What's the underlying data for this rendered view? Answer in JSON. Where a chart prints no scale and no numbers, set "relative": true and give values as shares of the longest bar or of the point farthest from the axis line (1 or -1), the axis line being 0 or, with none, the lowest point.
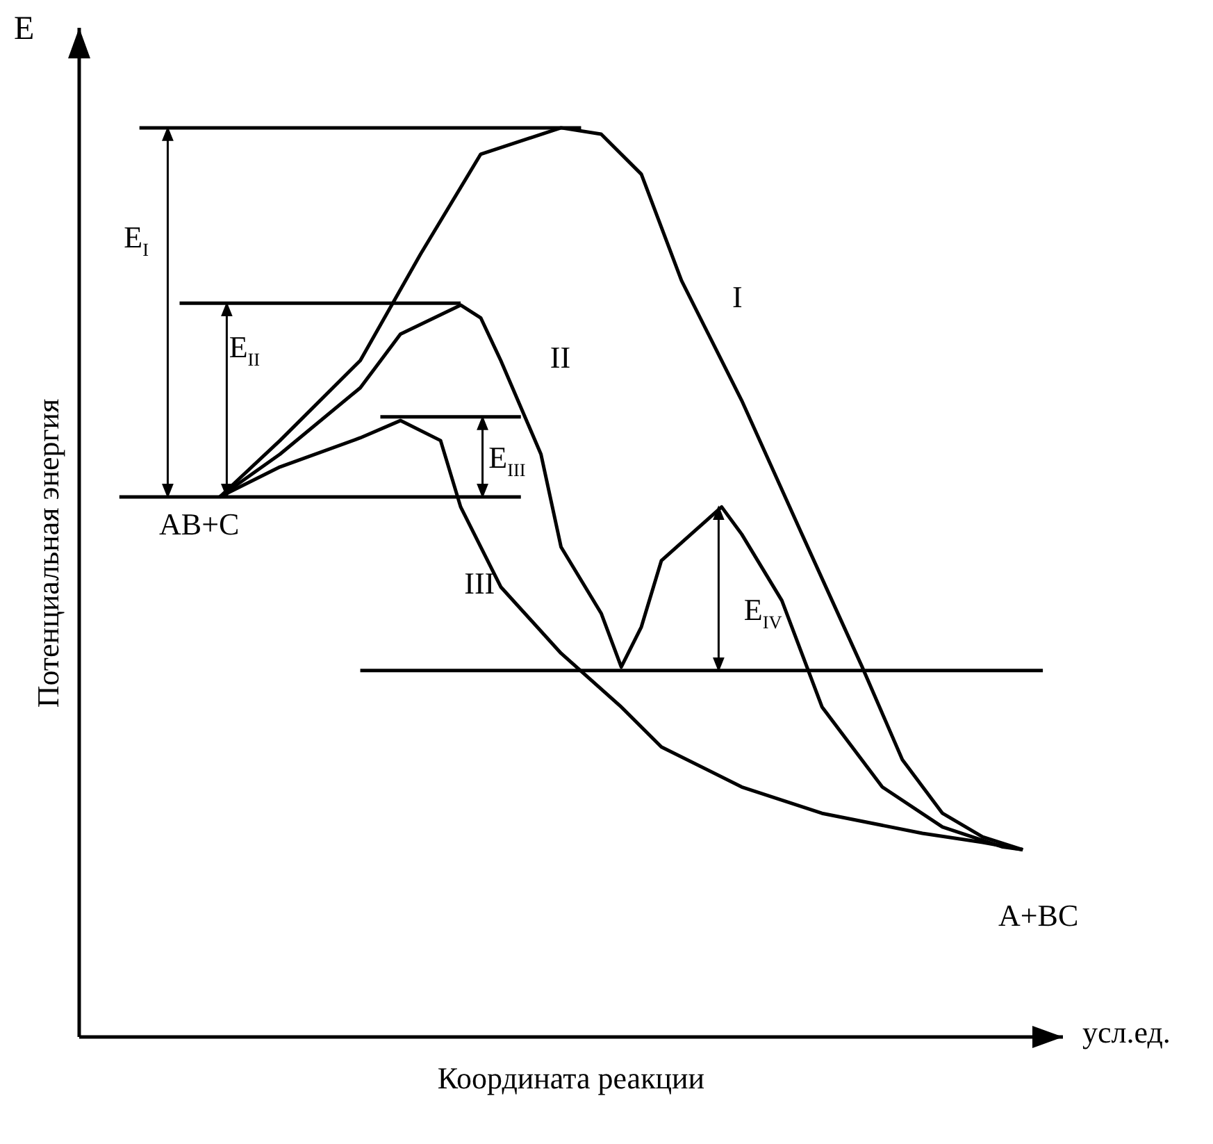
{
  "chart_data": {
    "type": "line",
    "relative": true,
    "xlabel": "Координата реакции",
    "ylabel": "Потенциальная энергия",
    "marker": "none",
    "line_style": "solid",
    "categories": [
      null,
      null,
      null,
      null,
      null,
      null,
      null,
      null,
      null,
      null,
      null,
      null,
      null,
      null,
      null,
      null,
      null,
      null,
      null,
      null,
      null,
      null,
      null,
      null,
      null,
      null,
      null,
      null,
      null,
      null,
      null,
      null,
      null,
      null,
      null,
      null,
      null,
      null,
      null,
      null,
      null,
      null,
      null,
      null,
      null,
      null,
      null,
      null,
      null,
      null
    ],
    "series": [
      {
        "name": "I",
        "color": "#000000",
        "values": [
          null,
          null,
          null,
          null,
          null,
          null,
          null,
          0.594,
          null,
          null,
          0.656,
          null,
          null,
          null,
          0.744,
          null,
          null,
          0.861,
          null,
          null,
          0.971,
          null,
          null,
          null,
          1.0,
          null,
          0.993,
          null,
          0.949,
          null,
          0.832,
          null,
          null,
          0.7,
          null,
          null,
          0.553,
          null,
          null,
          0.407,
          null,
          0.305,
          null,
          0.246,
          null,
          0.22,
          null,
          0.206,
          null,
          null
        ]
      },
      {
        "name": "II",
        "color": "#000000",
        "values": [
          null,
          null,
          null,
          null,
          null,
          null,
          null,
          0.594,
          null,
          null,
          0.641,
          null,
          null,
          null,
          0.714,
          null,
          0.773,
          null,
          null,
          0.805,
          0.791,
          0.744,
          null,
          0.641,
          0.539,
          null,
          0.466,
          0.407,
          0.451,
          0.524,
          null,
          null,
          0.583,
          0.553,
          null,
          0.48,
          null,
          0.363,
          null,
          null,
          0.275,
          null,
          null,
          0.231,
          null,
          null,
          0.209,
          0.206,
          null,
          null
        ]
      },
      {
        "name": "III",
        "color": "#000000",
        "values": [
          null,
          null,
          null,
          null,
          null,
          null,
          null,
          0.594,
          null,
          null,
          0.627,
          null,
          null,
          null,
          0.659,
          null,
          0.678,
          null,
          0.656,
          0.583,
          null,
          0.495,
          null,
          null,
          0.422,
          null,
          null,
          0.363,
          null,
          0.319,
          null,
          null,
          null,
          0.275,
          null,
          null,
          null,
          0.246,
          null,
          null,
          null,
          null,
          0.224,
          null,
          null,
          0.214,
          null,
          0.206,
          null,
          null
        ]
      },
      {
        "color": "#000000",
        "values": [
          null,
          null,
          0.594,
          null,
          null,
          null,
          null,
          null,
          null,
          null,
          null,
          null,
          null,
          null,
          null,
          null,
          null,
          null,
          null,
          null,
          null,
          null,
          0.594,
          null,
          null,
          null,
          null,
          null,
          null,
          null,
          null,
          null,
          null,
          null,
          null,
          null,
          null,
          null,
          null,
          null,
          null,
          null,
          null,
          null,
          null,
          null,
          null,
          null,
          null,
          null
        ]
      },
      {
        "color": "#000000",
        "values": [
          null,
          null,
          null,
          1.0,
          null,
          null,
          null,
          null,
          null,
          null,
          null,
          null,
          null,
          null,
          null,
          null,
          null,
          null,
          null,
          null,
          null,
          null,
          null,
          null,
          null,
          1.0,
          null,
          null,
          null,
          null,
          null,
          null,
          null,
          null,
          null,
          null,
          null,
          null,
          null,
          null,
          null,
          null,
          null,
          null,
          null,
          null,
          null,
          null,
          null,
          null
        ]
      },
      {
        "color": "#000000",
        "values": [
          null,
          null,
          null,
          null,
          null,
          0.807,
          null,
          null,
          null,
          null,
          null,
          null,
          null,
          null,
          null,
          null,
          null,
          null,
          null,
          0.807,
          null,
          null,
          null,
          null,
          null,
          null,
          null,
          null,
          null,
          null,
          null,
          null,
          null,
          null,
          null,
          null,
          null,
          null,
          null,
          null,
          null,
          null,
          null,
          null,
          null,
          null,
          null,
          null,
          null,
          null
        ]
      },
      {
        "color": "#000000",
        "values": [
          null,
          null,
          null,
          null,
          null,
          null,
          null,
          null,
          null,
          null,
          null,
          null,
          null,
          null,
          null,
          0.682,
          null,
          null,
          null,
          null,
          null,
          null,
          0.682,
          null,
          null,
          null,
          null,
          null,
          null,
          null,
          null,
          null,
          null,
          null,
          null,
          null,
          null,
          null,
          null,
          null,
          null,
          null,
          null,
          null,
          null,
          null,
          null,
          null,
          null,
          null
        ]
      },
      {
        "color": "#000000",
        "values": [
          null,
          null,
          null,
          null,
          null,
          null,
          null,
          null,
          null,
          null,
          null,
          null,
          null,
          null,
          0.403,
          null,
          null,
          null,
          null,
          null,
          null,
          null,
          null,
          null,
          null,
          null,
          null,
          null,
          null,
          null,
          null,
          null,
          null,
          null,
          null,
          null,
          null,
          null,
          null,
          null,
          null,
          null,
          null,
          null,
          null,
          null,
          null,
          null,
          0.403,
          null
        ]
      }
    ],
    "annotations": [
      "E",
      "усл.ед.",
      "E$_{I}$",
      "E$_{II}$",
      "E$_{III}$",
      "E$_{IV}$",
      "AB+C",
      "A+BC"
    ]
  }
}
